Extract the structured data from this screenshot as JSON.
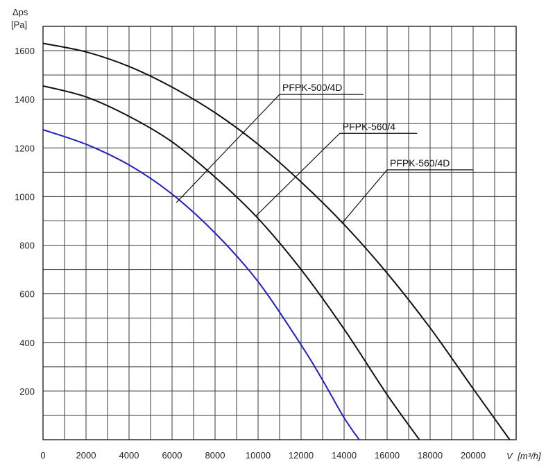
{
  "chart_data": {
    "type": "line",
    "title": "",
    "ylabel_line1": "Δps",
    "ylabel_line2": "[Pa]",
    "xlabel_prefix": "V",
    "xlabel_unit": "[m³/h]",
    "xlim": [
      0,
      22000
    ],
    "ylim": [
      0,
      1700
    ],
    "x_ticks": [
      0,
      2000,
      4000,
      6000,
      8000,
      10000,
      12000,
      14000,
      16000,
      18000,
      20000
    ],
    "y_ticks": [
      200,
      400,
      600,
      800,
      1000,
      1200,
      1400,
      1600
    ],
    "x_tick_labels": [
      "0",
      "2000",
      "4000",
      "6000",
      "8000",
      "10000",
      "12000",
      "14000",
      "16000",
      "18000",
      "20000"
    ],
    "y_tick_labels": [
      "200",
      "400",
      "600",
      "800",
      "1000",
      "1200",
      "1400",
      "1600"
    ],
    "grid": true,
    "series": [
      {
        "name": "PFPK-500/4D",
        "color": "#1f1fc8",
        "x": [
          0,
          2000,
          4000,
          6000,
          8000,
          10000,
          12000,
          13000,
          14000,
          14700
        ],
        "y": [
          1275,
          1215,
          1130,
          1010,
          850,
          650,
          390,
          245,
          90,
          0
        ]
      },
      {
        "name": "PFPK-560/4",
        "color": "#111111",
        "x": [
          0,
          2000,
          4000,
          6000,
          8000,
          10000,
          12000,
          14000,
          16000,
          17500
        ],
        "y": [
          1455,
          1410,
          1330,
          1225,
          1080,
          910,
          700,
          455,
          185,
          0
        ]
      },
      {
        "name": "PFPK-560/4D",
        "color": "#111111",
        "x": [
          0,
          2000,
          4000,
          6000,
          8000,
          10000,
          12000,
          14000,
          16000,
          18000,
          20000,
          21700
        ],
        "y": [
          1630,
          1595,
          1535,
          1450,
          1345,
          1215,
          1060,
          885,
          685,
          460,
          210,
          0
        ]
      }
    ],
    "labels": [
      {
        "text": "PFPK-500/4D",
        "series": "PFPK-500/4D",
        "point": [
          6200,
          975
        ],
        "anchor": [
          11000,
          1420
        ],
        "line_end": [
          14900,
          1420
        ]
      },
      {
        "text": "PFPK-560/4",
        "series": "PFPK-560/4",
        "point": [
          9900,
          920
        ],
        "anchor": [
          13800,
          1260
        ],
        "line_end": [
          17400,
          1260
        ]
      },
      {
        "text": "PFPK-560/4D",
        "series": "PFPK-560/4D",
        "point": [
          13900,
          890
        ],
        "anchor": [
          16000,
          1110
        ],
        "line_end": [
          20000,
          1110
        ]
      }
    ]
  }
}
